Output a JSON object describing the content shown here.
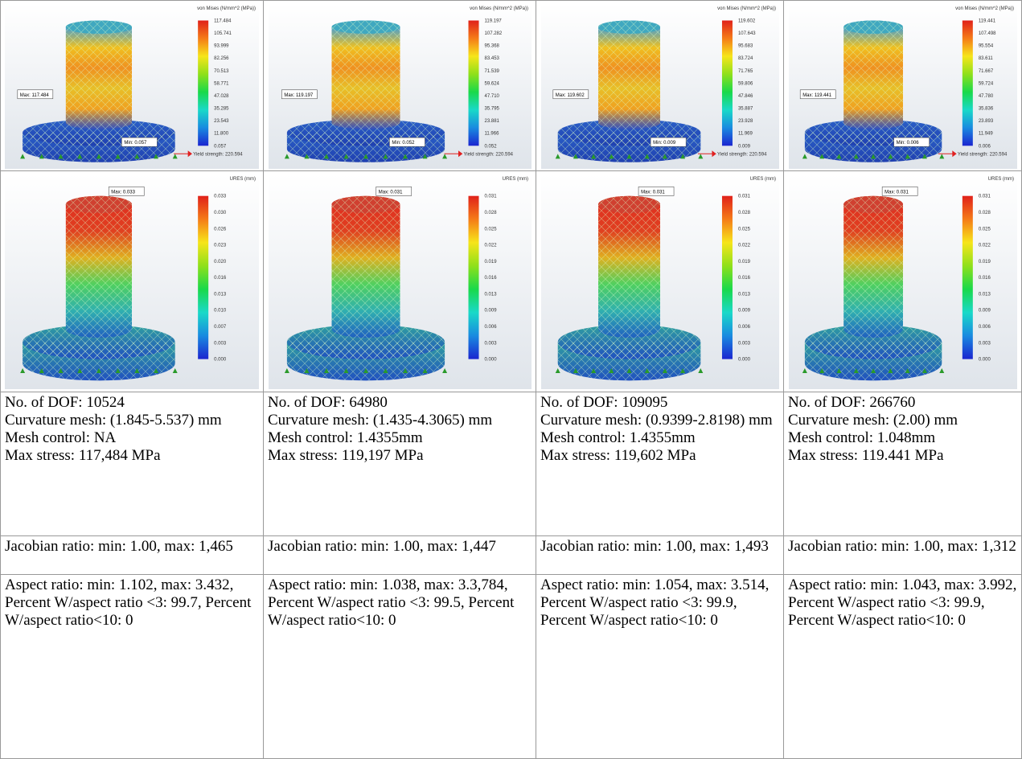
{
  "images": [
    [
      {
        "legend_title": "von Mises (N/mm^2 (MPa))",
        "legend_values": [
          "117.484",
          "105.741",
          "93.999",
          "82.256",
          "70.513",
          "58.771",
          "47.028",
          "35.285",
          "23.543",
          "11.800",
          "0.057"
        ],
        "probes": [
          "Max: 117.484",
          "Min: 0.057"
        ],
        "yield": "Yield strength: 220.594"
      },
      {
        "legend_title": "von Mises (N/mm^2 (MPa))",
        "legend_values": [
          "119.197",
          "107.282",
          "95.368",
          "83.453",
          "71.539",
          "59.624",
          "47.710",
          "35.795",
          "23.881",
          "11.966",
          "0.052"
        ],
        "probes": [
          "Max: 119.197",
          "Min: 0.052"
        ],
        "yield": "Yield strength: 220.594"
      },
      {
        "legend_title": "von Mises (N/mm^2 (MPa))",
        "legend_values": [
          "119.602",
          "107.643",
          "95.683",
          "83.724",
          "71.765",
          "59.806",
          "47.846",
          "35.887",
          "23.928",
          "11.969",
          "0.009"
        ],
        "probes": [
          "Max: 119.602",
          "Min: 0.009"
        ],
        "yield": "Yield strength: 220.594"
      },
      {
        "legend_title": "von Mises (N/mm^2 (MPa))",
        "legend_values": [
          "119.441",
          "107.498",
          "95.554",
          "83.611",
          "71.667",
          "59.724",
          "47.780",
          "35.836",
          "23.893",
          "11.949",
          "0.006"
        ],
        "probes": [
          "Max: 119.441",
          "Min: 0.006"
        ],
        "yield": "Yield strength: 220.594"
      }
    ],
    [
      {
        "legend_title": "URES (mm)",
        "legend_values": [
          "0.033",
          "0.030",
          "0.026",
          "0.023",
          "0.020",
          "0.016",
          "0.013",
          "0.010",
          "0.007",
          "0.003",
          "0.000"
        ],
        "probes": [
          "Max: 0.033"
        ]
      },
      {
        "legend_title": "URES (mm)",
        "legend_values": [
          "0.031",
          "0.028",
          "0.025",
          "0.022",
          "0.019",
          "0.016",
          "0.013",
          "0.009",
          "0.006",
          "0.003",
          "0.000"
        ],
        "probes": [
          "Max: 0.031"
        ]
      },
      {
        "legend_title": "URES (mm)",
        "legend_values": [
          "0.031",
          "0.028",
          "0.025",
          "0.022",
          "0.019",
          "0.016",
          "0.013",
          "0.009",
          "0.006",
          "0.003",
          "0.000"
        ],
        "probes": [
          "Max: 0.031"
        ]
      },
      {
        "legend_title": "URES (mm)",
        "legend_values": [
          "0.031",
          "0.028",
          "0.025",
          "0.022",
          "0.019",
          "0.016",
          "0.013",
          "0.009",
          "0.006",
          "0.003",
          "0.000"
        ],
        "probes": [
          "Max: 0.031"
        ]
      }
    ]
  ],
  "table": {
    "rows": [
      [
        [
          "No. of DOF: 10524",
          "Curvature mesh: (1.845-5.537) mm",
          "Mesh control: NA",
          "Max stress: 117,484 MPa"
        ],
        [
          "No. of DOF: 64980",
          "Curvature mesh: (1.435-4.3065) mm",
          "Mesh control: 1.4355mm",
          "Max stress: 119,197 MPa"
        ],
        [
          "No. of DOF: 109095",
          "Curvature mesh: (0.9399-2.8198) mm",
          "Mesh control: 1.4355mm",
          "Max stress: 119,602 MPa"
        ],
        [
          "No. of DOF: 266760",
          "Curvature mesh: (2.00) mm",
          "Mesh control: 1.048mm",
          "Max stress: 119.441 MPa"
        ]
      ],
      [
        [
          "Jacobian ratio: min: 1.00, max: 1,465"
        ],
        [
          "Jacobian ratio: min: 1.00, max: 1,447"
        ],
        [
          "Jacobian ratio: min: 1.00, max: 1,493"
        ],
        [
          "Jacobian ratio: min: 1.00, max: 1,312"
        ]
      ],
      [
        [
          "Aspect ratio: min: 1.102, max: 3.432, Percent W/aspect ratio <3: 99.7, Percent W/aspect ratio<10: 0"
        ],
        [
          "Aspect ratio: min: 1.038, max: 3.3,784, Percent W/aspect ratio <3: 99.5, Percent W/aspect ratio<10: 0"
        ],
        [
          "Aspect ratio: min: 1.054, max: 3.514, Percent W/aspect ratio <3: 99.9, Percent W/aspect ratio<10: 0"
        ],
        [
          "Aspect ratio: min: 1.043, max: 3.992, Percent W/aspect ratio <3: 99.9, Percent W/aspect ratio<10: 0"
        ]
      ]
    ]
  }
}
